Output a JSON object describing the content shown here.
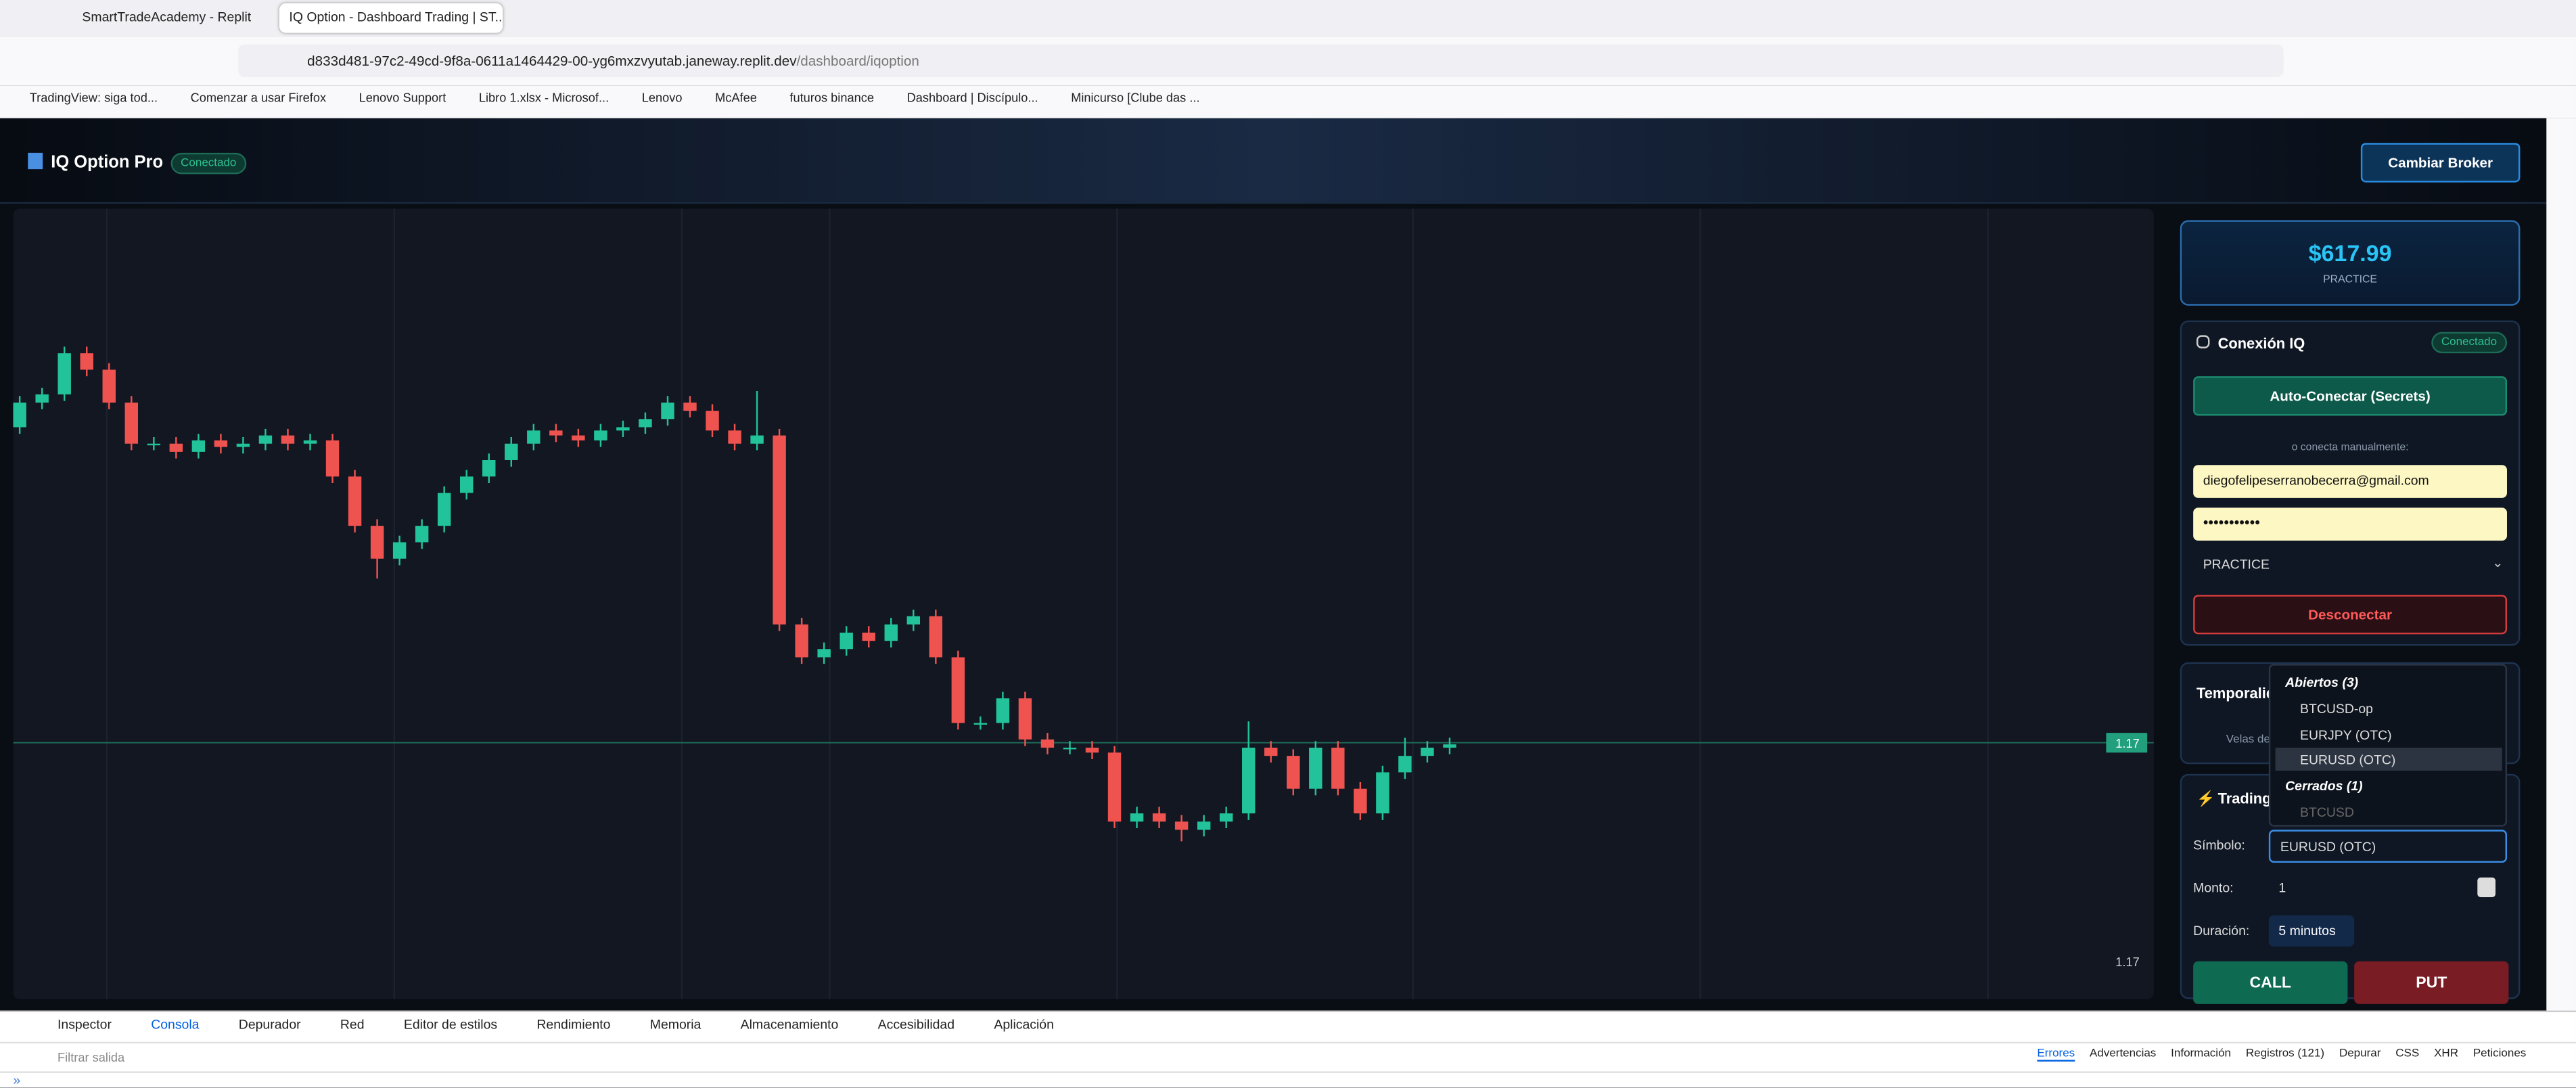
{
  "browser": {
    "tabs": [
      "SmartTradeAcademy - Replit",
      "IQ Option - Dashboard Trading | ST..."
    ],
    "url_host": "d833d481-97c2-49cd-9f8a-0611a1464429-00-yg6mxzvyutab.janeway.replit.dev",
    "url_path": "/dashboard/iqoption",
    "bookmarks": [
      "TradingView: siga tod...",
      "Comenzar a usar Firefox",
      "Lenovo Support",
      "Libro 1.xlsx - Microsof...",
      "Lenovo",
      "McAfee",
      "futuros binance",
      "Dashboard | Discípulo...",
      "Minicurso [Clube das ..."
    ]
  },
  "app": {
    "title": "IQ Option Pro",
    "status": "Conectado",
    "broker_button": "Cambiar Broker"
  },
  "balance": {
    "amount": "$617.99",
    "mode": "PRACTICE"
  },
  "connection": {
    "title": "Conexión IQ",
    "status": "Conectado",
    "auto_button": "Auto-Conectar (Secrets)",
    "manual_hint": "o conecta manualmente:",
    "email": "diegofelipeserranobecerra@gmail.com",
    "password": "•••••••••••",
    "account": "PRACTICE",
    "disconnect_button": "Desconectar"
  },
  "timeframe": {
    "title": "Temporalidad",
    "subtitle": "Velas de"
  },
  "trading": {
    "title": "Trading",
    "symbol_label": "Símbolo:",
    "symbol": "EURUSD (OTC)",
    "amount_label": "Monto:",
    "amount": "1",
    "duration_label": "Duración:",
    "duration": "5 minutos",
    "call_button": "CALL",
    "put_button": "PUT"
  },
  "dropdown": {
    "open_header": "Abiertos (3)",
    "open_items": [
      "BTCUSD-op",
      "EURJPY (OTC)",
      "EURUSD (OTC)"
    ],
    "closed_header": "Cerrados (1)",
    "closed_items": [
      "BTCUSD"
    ]
  },
  "devtools": {
    "tabs": [
      "Inspector",
      "Consola",
      "Depurador",
      "Red",
      "Editor de estilos",
      "Rendimiento",
      "Memoria",
      "Almacenamiento",
      "Accesibilidad",
      "Aplicación"
    ],
    "filter_placeholder": "Filtrar salida",
    "filters": [
      "Errores",
      "Advertencias",
      "Información",
      "Registros (121)",
      "Depurar",
      "CSS",
      "XHR",
      "Peticiones"
    ]
  },
  "chart_data": {
    "type": "candlestick",
    "ylim": [
      1.16922,
      1.171625
    ],
    "up_color": "#22c39a",
    "down_color": "#ef5350",
    "current_price": {
      "value": 1.17,
      "label": "1.17"
    },
    "axis_label": {
      "value": 1.17,
      "label": "1.17"
    },
    "candles": [
      [
        1.17096,
        1.171055,
        1.17094,
        1.171035
      ],
      [
        1.171035,
        1.17108,
        1.171015,
        1.17106
      ],
      [
        1.17106,
        1.171205,
        1.17104,
        1.171185
      ],
      [
        1.171185,
        1.171205,
        1.171115,
        1.171135
      ],
      [
        1.171135,
        1.171155,
        1.171015,
        1.171035
      ],
      [
        1.171035,
        1.171055,
        1.17089,
        1.17091
      ],
      [
        1.17091,
        1.17093,
        1.17089,
        1.17091
      ],
      [
        1.17091,
        1.17093,
        1.170865,
        1.170885
      ],
      [
        1.170885,
        1.17094,
        1.170865,
        1.17092
      ],
      [
        1.17092,
        1.17094,
        1.17088,
        1.1709
      ],
      [
        1.1709,
        1.17093,
        1.17088,
        1.17091
      ],
      [
        1.17091,
        1.170955,
        1.17089,
        1.170935
      ],
      [
        1.170935,
        1.170955,
        1.17089,
        1.17091
      ],
      [
        1.17091,
        1.17094,
        1.17089,
        1.17092
      ],
      [
        1.17092,
        1.17094,
        1.17079,
        1.17081
      ],
      [
        1.17081,
        1.17083,
        1.17064,
        1.17066
      ],
      [
        1.17066,
        1.17068,
        1.1705,
        1.17056
      ],
      [
        1.17056,
        1.17063,
        1.17054,
        1.17061
      ],
      [
        1.17061,
        1.17068,
        1.17059,
        1.17066
      ],
      [
        1.17066,
        1.17078,
        1.17064,
        1.17076
      ],
      [
        1.17076,
        1.17083,
        1.17074,
        1.17081
      ],
      [
        1.17081,
        1.17088,
        1.17079,
        1.17086
      ],
      [
        1.17086,
        1.17093,
        1.17084,
        1.17091
      ],
      [
        1.17091,
        1.17097,
        1.17089,
        1.17095
      ],
      [
        1.17095,
        1.17097,
        1.170915,
        1.170935
      ],
      [
        1.170935,
        1.170955,
        1.1709,
        1.17092
      ],
      [
        1.17092,
        1.17097,
        1.1709,
        1.17095
      ],
      [
        1.17095,
        1.17098,
        1.17093,
        1.17096
      ],
      [
        1.17096,
        1.171005,
        1.17094,
        1.170985
      ],
      [
        1.170985,
        1.171055,
        1.170965,
        1.171035
      ],
      [
        1.171035,
        1.171055,
        1.17099,
        1.17101
      ],
      [
        1.17101,
        1.17103,
        1.17093,
        1.17095
      ],
      [
        1.17095,
        1.17097,
        1.17089,
        1.17091
      ],
      [
        1.17091,
        1.17107,
        1.17089,
        1.170935
      ],
      [
        1.170935,
        1.170955,
        1.17034,
        1.17036
      ],
      [
        1.17036,
        1.17038,
        1.17024,
        1.17026
      ],
      [
        1.17026,
        1.170305,
        1.17024,
        1.170285
      ],
      [
        1.170285,
        1.170355,
        1.170265,
        1.170335
      ],
      [
        1.170335,
        1.170355,
        1.17029,
        1.17031
      ],
      [
        1.17031,
        1.17038,
        1.17029,
        1.17036
      ],
      [
        1.17036,
        1.170405,
        1.17034,
        1.170385
      ],
      [
        1.170385,
        1.170405,
        1.17024,
        1.17026
      ],
      [
        1.17026,
        1.17028,
        1.17004,
        1.17006
      ],
      [
        1.17006,
        1.17008,
        1.17004,
        1.17006
      ],
      [
        1.17006,
        1.170155,
        1.17004,
        1.170135
      ],
      [
        1.170135,
        1.170155,
        1.16999,
        1.17001
      ],
      [
        1.17001,
        1.17003,
        1.169965,
        1.169985
      ],
      [
        1.169985,
        1.170005,
        1.169965,
        1.169985
      ],
      [
        1.169985,
        1.170005,
        1.16995,
        1.16997
      ],
      [
        1.16997,
        1.16999,
        1.16974,
        1.16976
      ],
      [
        1.16976,
        1.169805,
        1.16974,
        1.169785
      ],
      [
        1.169785,
        1.169805,
        1.16974,
        1.16976
      ],
      [
        1.16976,
        1.16978,
        1.1697,
        1.169735
      ],
      [
        1.169735,
        1.16978,
        1.169715,
        1.16976
      ],
      [
        1.16976,
        1.169805,
        1.16974,
        1.169785
      ],
      [
        1.169785,
        1.170065,
        1.169765,
        1.169985
      ],
      [
        1.169985,
        1.170005,
        1.16994,
        1.16996
      ],
      [
        1.16996,
        1.16998,
        1.16984,
        1.16986
      ],
      [
        1.16986,
        1.170005,
        1.16984,
        1.169985
      ],
      [
        1.169985,
        1.170005,
        1.16984,
        1.16986
      ],
      [
        1.16986,
        1.16988,
        1.169765,
        1.169785
      ],
      [
        1.169785,
        1.16993,
        1.169765,
        1.16991
      ],
      [
        1.16991,
        1.170015,
        1.16989,
        1.16996
      ],
      [
        1.16996,
        1.170005,
        1.16994,
        1.169985
      ],
      [
        1.169985,
        1.170015,
        1.169965,
        1.169995
      ]
    ]
  }
}
